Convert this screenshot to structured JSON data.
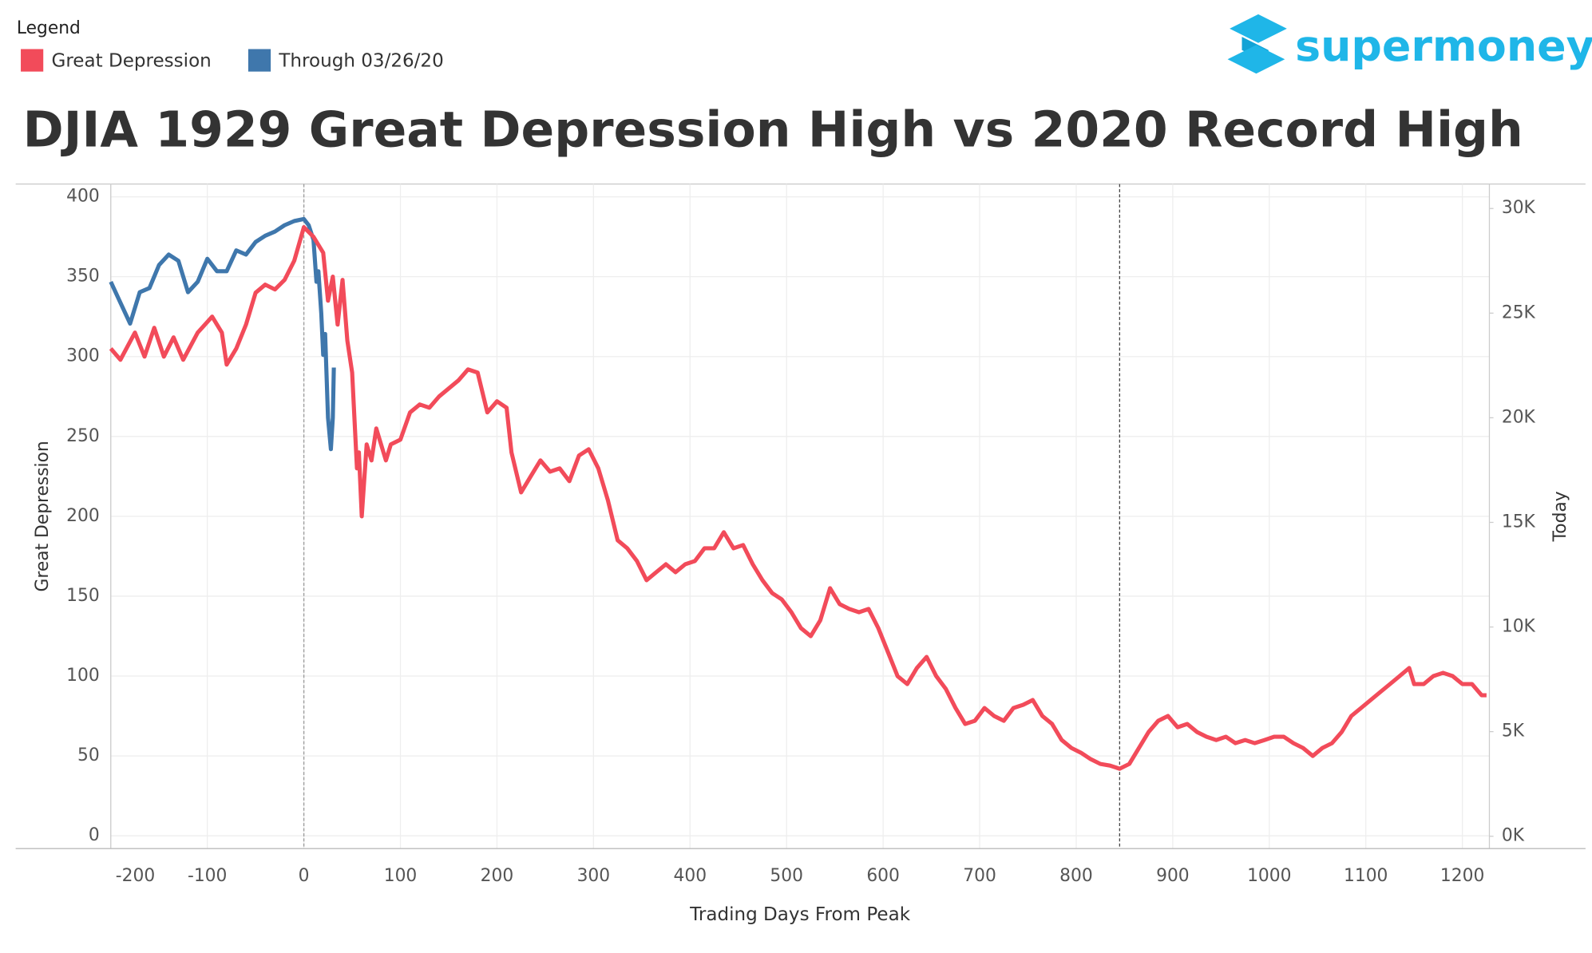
{
  "chart_data": {
    "type": "line",
    "title": "DJIA 1929 Great Depression High vs 2020 Record High",
    "legend_title": "Legend",
    "logo": "supermoney",
    "x_label": "Trading Days From Peak",
    "y_label": "Great Depression",
    "y2_label": "Today",
    "xlim": [
      -200,
      1228
    ],
    "xticks": [
      -200,
      -100,
      0,
      100,
      200,
      300,
      400,
      500,
      600,
      700,
      800,
      900,
      1000,
      1100,
      1200
    ],
    "ylim": [
      -8,
      408
    ],
    "yticks": [
      0,
      50,
      100,
      150,
      200,
      250,
      300,
      350,
      400
    ],
    "y2lim": [
      -590,
      31170
    ],
    "y2ticks": [
      {
        "value": 0,
        "label": "0K"
      },
      {
        "value": 5000,
        "label": "5K"
      },
      {
        "value": 10000,
        "label": "10K"
      },
      {
        "value": 15000,
        "label": "15K"
      },
      {
        "value": 20000,
        "label": "20K"
      },
      {
        "value": 25000,
        "label": "25K"
      },
      {
        "value": 30000,
        "label": "30K"
      }
    ],
    "grid": true,
    "reference_lines": [
      0,
      845
    ],
    "series": [
      {
        "name": "Great Depression",
        "color": "#f24b5a",
        "x": [
          -200,
          -190,
          -175,
          -165,
          -155,
          -145,
          -135,
          -125,
          -110,
          -95,
          -85,
          -80,
          -70,
          -60,
          -50,
          -40,
          -30,
          -20,
          -10,
          0,
          10,
          20,
          25,
          30,
          35,
          40,
          45,
          50,
          55,
          57,
          60,
          65,
          70,
          75,
          80,
          85,
          90,
          100,
          110,
          120,
          130,
          140,
          150,
          160,
          170,
          180,
          190,
          200,
          210,
          215,
          225,
          235,
          245,
          255,
          265,
          275,
          285,
          295,
          305,
          315,
          325,
          335,
          345,
          355,
          365,
          375,
          385,
          395,
          405,
          415,
          425,
          435,
          445,
          455,
          465,
          475,
          485,
          495,
          505,
          515,
          525,
          535,
          545,
          555,
          565,
          575,
          585,
          595,
          605,
          615,
          625,
          635,
          645,
          655,
          665,
          675,
          685,
          695,
          705,
          715,
          725,
          735,
          745,
          755,
          765,
          775,
          785,
          795,
          805,
          815,
          825,
          835,
          845,
          855,
          865,
          875,
          885,
          895,
          905,
          915,
          925,
          935,
          945,
          955,
          965,
          975,
          985,
          995,
          1005,
          1015,
          1025,
          1035,
          1045,
          1055,
          1065,
          1075,
          1085,
          1095,
          1105,
          1115,
          1125,
          1135,
          1145,
          1150,
          1160,
          1170,
          1180,
          1190,
          1200,
          1210,
          1220,
          1225
        ],
        "values": [
          305,
          298,
          315,
          300,
          318,
          300,
          312,
          298,
          315,
          325,
          315,
          295,
          305,
          320,
          340,
          345,
          342,
          348,
          360,
          381,
          375,
          365,
          335,
          350,
          320,
          348,
          310,
          290,
          230,
          240,
          200,
          245,
          235,
          255,
          245,
          235,
          245,
          248,
          265,
          270,
          268,
          275,
          280,
          285,
          292,
          290,
          265,
          272,
          268,
          240,
          215,
          225,
          235,
          228,
          230,
          222,
          238,
          242,
          230,
          210,
          185,
          180,
          172,
          160,
          165,
          170,
          165,
          170,
          172,
          180,
          180,
          190,
          180,
          182,
          170,
          160,
          152,
          148,
          140,
          130,
          125,
          135,
          155,
          145,
          142,
          140,
          142,
          130,
          115,
          100,
          95,
          105,
          112,
          100,
          92,
          80,
          70,
          72,
          80,
          75,
          72,
          80,
          82,
          85,
          75,
          70,
          60,
          55,
          52,
          48,
          45,
          44,
          42,
          45,
          55,
          65,
          72,
          75,
          68,
          70,
          65,
          62,
          60,
          62,
          58,
          60,
          58,
          60,
          62,
          62,
          58,
          55,
          50,
          55,
          58,
          65,
          75,
          80,
          85,
          90,
          95,
          100,
          105,
          95,
          95,
          100,
          102,
          100,
          95,
          95,
          88,
          88
        ]
      },
      {
        "name": "Through 03/26/20",
        "color": "#3f77ac",
        "axis": "y2",
        "x": [
          -200,
          -190,
          -180,
          -170,
          -160,
          -150,
          -140,
          -130,
          -120,
          -110,
          -100,
          -90,
          -80,
          -70,
          -60,
          -50,
          -40,
          -30,
          -20,
          -10,
          0,
          5,
          10,
          13,
          15,
          18,
          20,
          22,
          25,
          28,
          30,
          31
        ],
        "values": [
          26500,
          25500,
          24500,
          26000,
          26200,
          27300,
          27800,
          27500,
          26000,
          26500,
          27600,
          27000,
          27000,
          28000,
          27800,
          28400,
          28700,
          28900,
          29200,
          29400,
          29500,
          29200,
          28500,
          26500,
          27000,
          25000,
          23000,
          24000,
          20000,
          18500,
          20000,
          22400
        ]
      }
    ]
  }
}
